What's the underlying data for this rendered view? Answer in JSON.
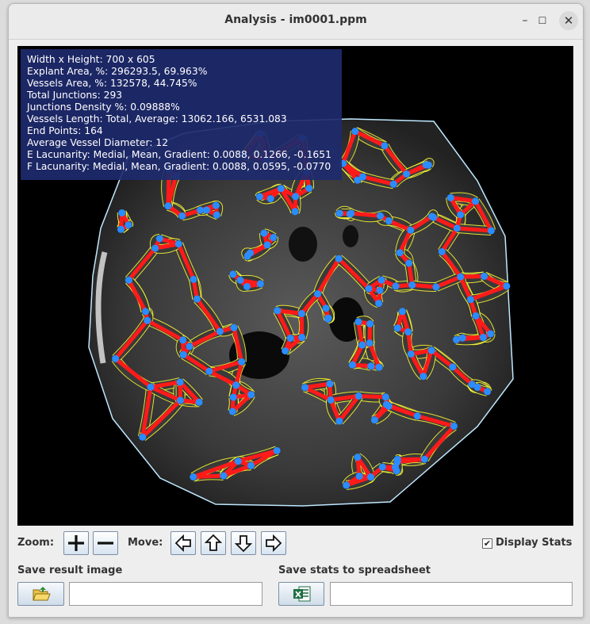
{
  "window": {
    "title": "Analysis - im0001.ppm",
    "minimize_glyph": "–",
    "maximize_glyph": "☐",
    "close_glyph": "✕"
  },
  "stats": [
    "Width x Height: 700 x 605",
    "Explant Area, %: 296293.5, 69.963%",
    "Vessels Area, %: 132578, 44.745%",
    "Total Junctions: 293",
    "Junctions Density %: 0.09888%",
    "Vessels Length: Total, Average: 13062.166, 6531.083",
    "End Points: 164",
    "Average Vessel Diameter: 12",
    "E Lacunarity: Medial, Mean, Gradient: 0.0088, 0.1266, -0.1651",
    "F Lacunarity: Medial, Mean, Gradient: 0.0088, 0.0595, -0.0770"
  ],
  "controls": {
    "zoom_label": "Zoom:",
    "move_label": "Move:",
    "display_stats_label": "Display Stats",
    "display_stats_checked": "✔",
    "save_image_label": "Save result image",
    "save_stats_label": "Save stats to spreadsheet",
    "save_image_path": "",
    "save_stats_path": ""
  },
  "icons": {
    "zoom_in": "plus-icon",
    "zoom_out": "minus-icon",
    "move_left": "arrow-left-icon",
    "move_up": "arrow-up-icon",
    "move_down": "arrow-down-icon",
    "move_right": "arrow-right-icon",
    "open_folder": "folder-open-icon",
    "spreadsheet": "excel-icon"
  },
  "colors": {
    "stats_overlay": "#1e2a6e",
    "vessel": "#ff1a1a",
    "junction": "#2a8cff",
    "outline": "#ffff33",
    "boundary": "#bfe8ff"
  }
}
